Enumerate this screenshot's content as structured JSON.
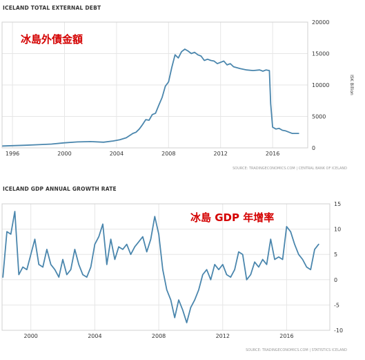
{
  "chart_data": [
    {
      "type": "line",
      "title": "ICELAND TOTAL EXTERNAL DEBT",
      "annotation": "冰島外債金額",
      "ylabel": "ISK Billion",
      "source": "SOURCE: TRADINGECONOMICS.COM | CENTRAL BANK OF ICELAND",
      "xlim": [
        1995.2,
        2018.7
      ],
      "ylim": [
        0,
        20000
      ],
      "yticks": [
        0,
        5000,
        10000,
        15000,
        20000
      ],
      "xticks": [
        1996,
        2000,
        2004,
        2008,
        2012,
        2016
      ],
      "grid": true,
      "line_color": "#4a86ad",
      "series": [
        {
          "x": [
            1995.25,
            1996,
            1997,
            1998,
            1999,
            2000,
            2001,
            2002,
            2003,
            2003.75,
            2004.25,
            2004.75,
            2005.25,
            2005.5,
            2005.75,
            2006,
            2006.25,
            2006.5,
            2006.75,
            2007,
            2007.25,
            2007.5,
            2007.75,
            2008,
            2008.25,
            2008.5,
            2008.75,
            2009,
            2009.25,
            2009.5,
            2009.75,
            2010,
            2010.25,
            2010.5,
            2010.75,
            2011,
            2011.25,
            2011.5,
            2011.75,
            2012,
            2012.25,
            2012.5,
            2012.75,
            2013,
            2013.5,
            2014,
            2014.5,
            2015,
            2015.25,
            2015.5,
            2015.75,
            2015.85,
            2016,
            2016.25,
            2016.5,
            2016.75,
            2017,
            2017.5,
            2018
          ],
          "values": [
            300,
            350,
            420,
            500,
            600,
            800,
            950,
            1000,
            900,
            1100,
            1300,
            1600,
            2300,
            2500,
            3000,
            3700,
            4500,
            4400,
            5300,
            5500,
            6800,
            8000,
            9800,
            10500,
            12800,
            14800,
            14300,
            15300,
            15700,
            15400,
            15000,
            15200,
            14800,
            14600,
            13900,
            14100,
            13900,
            13800,
            13400,
            13600,
            13800,
            13200,
            13400,
            12900,
            12600,
            12400,
            12300,
            12400,
            12200,
            12400,
            12300,
            7000,
            3300,
            3000,
            3100,
            2800,
            2700,
            2300,
            2300
          ]
        }
      ]
    },
    {
      "type": "line",
      "title": "ICELAND GDP ANNUAL GROWTH RATE",
      "annotation": "冰島 GDP 年增率",
      "source": "SOURCE: TRADINGECONOMICS.COM | STATISTICS ICELAND",
      "xlim": [
        1998.2,
        2018.7
      ],
      "ylim": [
        -10,
        15
      ],
      "yticks": [
        -10,
        -5,
        0,
        5,
        10,
        15
      ],
      "xticks": [
        2000,
        2004,
        2008,
        2012,
        2016
      ],
      "grid": true,
      "line_color": "#4a86ad",
      "series": [
        {
          "x": [
            1998.25,
            1998.5,
            1998.75,
            1999,
            1999.25,
            1999.5,
            1999.75,
            2000,
            2000.25,
            2000.5,
            2000.75,
            2001,
            2001.25,
            2001.5,
            2001.75,
            2002,
            2002.25,
            2002.5,
            2002.75,
            2003,
            2003.25,
            2003.5,
            2003.75,
            2004,
            2004.25,
            2004.5,
            2004.75,
            2005,
            2005.25,
            2005.5,
            2005.75,
            2006,
            2006.25,
            2006.5,
            2006.75,
            2007,
            2007.25,
            2007.5,
            2007.75,
            2008,
            2008.25,
            2008.5,
            2008.75,
            2009,
            2009.25,
            2009.5,
            2009.75,
            2010,
            2010.25,
            2010.5,
            2010.75,
            2011,
            2011.25,
            2011.5,
            2011.75,
            2012,
            2012.25,
            2012.5,
            2012.75,
            2013,
            2013.25,
            2013.5,
            2013.75,
            2014,
            2014.25,
            2014.5,
            2014.75,
            2015,
            2015.25,
            2015.5,
            2015.75,
            2016,
            2016.25,
            2016.5,
            2016.75,
            2017,
            2017.25,
            2017.5,
            2017.75,
            2018
          ],
          "values": [
            0.5,
            9.5,
            9,
            13.5,
            1,
            2.5,
            2,
            5,
            8,
            3,
            2.5,
            6,
            3,
            2,
            0.5,
            4,
            1,
            2,
            6,
            3,
            1,
            0.5,
            2.5,
            7,
            8.5,
            11,
            3,
            8,
            4,
            6.5,
            6,
            7,
            5,
            6.5,
            7.5,
            8.5,
            5.5,
            8,
            12.5,
            9,
            2,
            -2,
            -4,
            -7.5,
            -4,
            -6,
            -8.5,
            -5.5,
            -4,
            -2,
            1,
            2,
            0,
            3,
            2,
            3,
            1,
            0.5,
            2,
            5.5,
            5,
            0,
            1,
            3.5,
            2.5,
            4,
            3,
            8,
            4,
            4.5,
            4,
            10.5,
            9.5,
            7,
            5,
            4,
            2.5,
            2,
            6,
            7
          ]
        }
      ]
    }
  ]
}
